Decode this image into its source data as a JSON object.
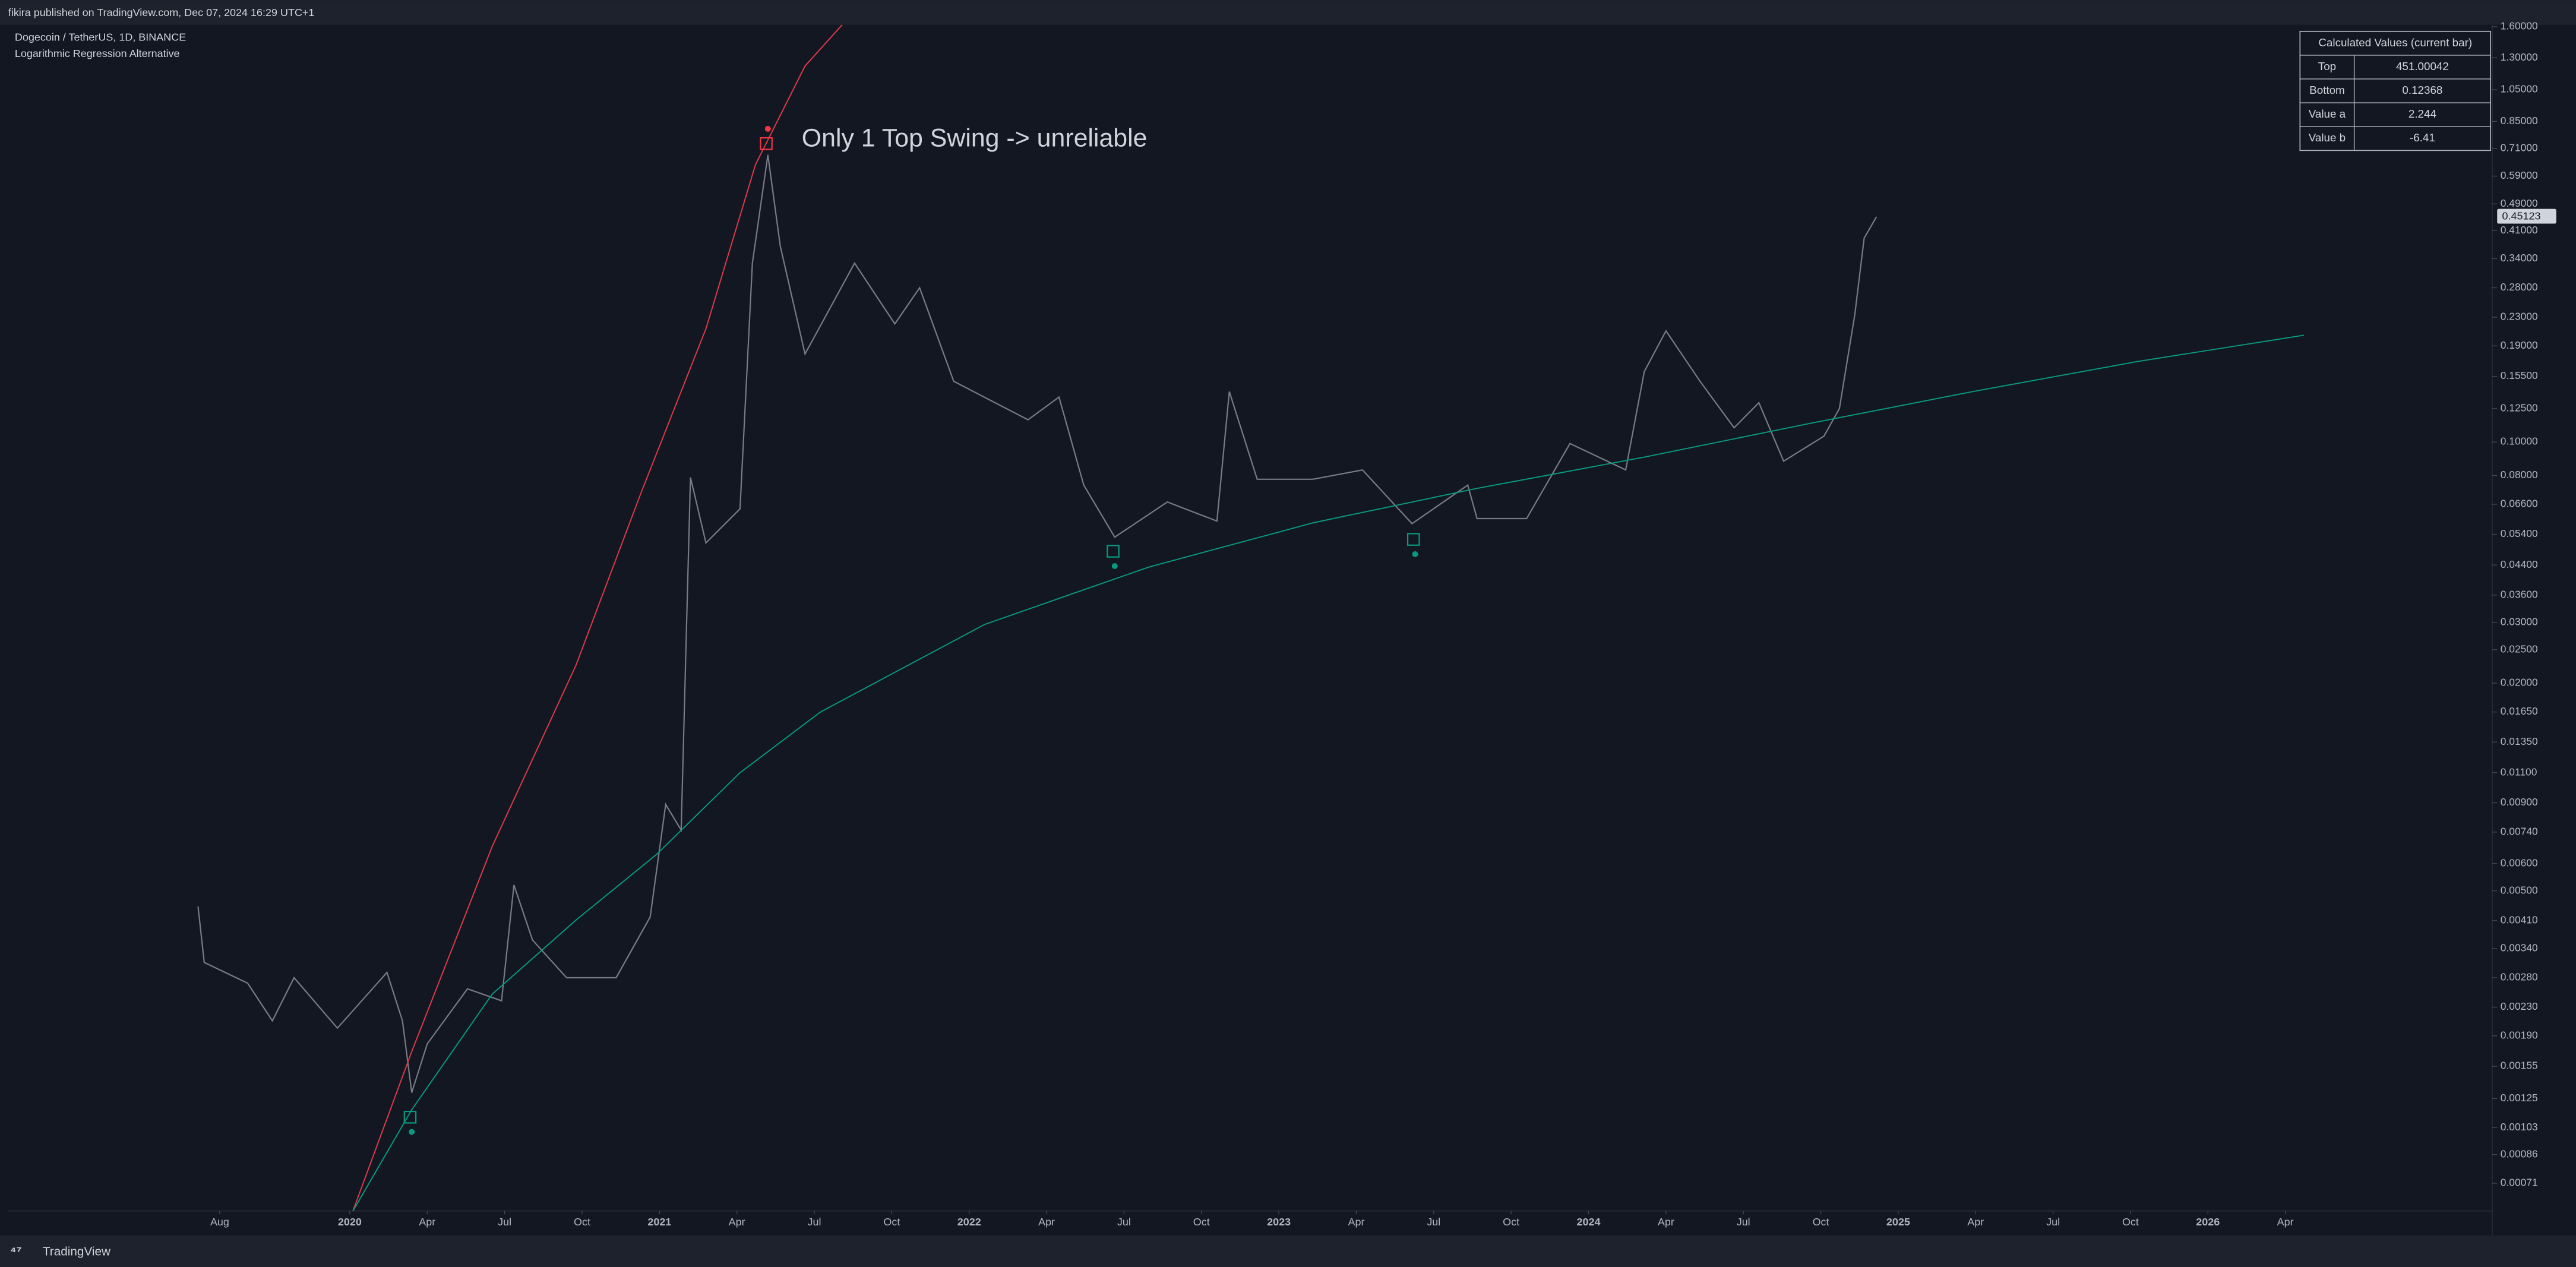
{
  "header": {
    "publisher": "fikira published on TradingView.com, Dec 07, 2024 16:29 UTC+1",
    "symbol": "Dogecoin / TetherUS, 1D, BINANCE",
    "indicator": "Logarithmic Regression Alternative"
  },
  "chart_data": {
    "type": "line",
    "log_scale": true,
    "annotation": "Only 1 Top Swing -> unreliable",
    "xlim": [
      2018.897,
      2026.918
    ],
    "ylim": [
      0.00059,
      1.62
    ],
    "xticks": [
      {
        "value": 2019.58,
        "label": "Aug"
      },
      2020,
      {
        "value": 2020.25,
        "label": "Apr"
      },
      {
        "value": 2020.5,
        "label": "Jul"
      },
      {
        "value": 2020.75,
        "label": "Oct"
      },
      2021,
      {
        "value": 2021.25,
        "label": "Apr"
      },
      {
        "value": 2021.5,
        "label": "Jul"
      },
      {
        "value": 2021.75,
        "label": "Oct"
      },
      2022,
      {
        "value": 2022.25,
        "label": "Apr"
      },
      {
        "value": 2022.5,
        "label": "Jul"
      },
      {
        "value": 2022.75,
        "label": "Oct"
      },
      2023,
      {
        "value": 2023.25,
        "label": "Apr"
      },
      {
        "value": 2023.5,
        "label": "Jul"
      },
      {
        "value": 2023.75,
        "label": "Oct"
      },
      2024,
      {
        "value": 2024.25,
        "label": "Apr"
      },
      {
        "value": 2024.5,
        "label": "Jul"
      },
      {
        "value": 2024.75,
        "label": "Oct"
      },
      2025,
      {
        "value": 2025.25,
        "label": "Apr"
      },
      {
        "value": 2025.5,
        "label": "Jul"
      },
      {
        "value": 2025.75,
        "label": "Oct"
      },
      2026,
      {
        "value": 2026.25,
        "label": "Apr"
      }
    ],
    "yticks": [
      {
        "value": 1.6,
        "label": "1.60000"
      },
      {
        "value": 1.3,
        "label": "1.30000"
      },
      {
        "value": 1.05,
        "label": "1.05000"
      },
      {
        "value": 0.85,
        "label": "0.85000"
      },
      {
        "value": 0.71,
        "label": "0.71000"
      },
      {
        "value": 0.59,
        "label": "0.59000"
      },
      {
        "value": 0.49,
        "label": "0.49000"
      },
      {
        "value": 0.41,
        "label": "0.41000"
      },
      {
        "value": 0.34,
        "label": "0.34000"
      },
      {
        "value": 0.28,
        "label": "0.28000"
      },
      {
        "value": 0.23,
        "label": "0.23000"
      },
      {
        "value": 0.19,
        "label": "0.19000"
      },
      {
        "value": 0.155,
        "label": "0.15500"
      },
      {
        "value": 0.125,
        "label": "0.12500"
      },
      {
        "value": 0.1,
        "label": "0.10000"
      },
      {
        "value": 0.08,
        "label": "0.08000"
      },
      {
        "value": 0.066,
        "label": "0.06600"
      },
      {
        "value": 0.054,
        "label": "0.05400"
      },
      {
        "value": 0.044,
        "label": "0.04400"
      },
      {
        "value": 0.036,
        "label": "0.03600"
      },
      {
        "value": 0.03,
        "label": "0.03000"
      },
      {
        "value": 0.025,
        "label": "0.02500"
      },
      {
        "value": 0.02,
        "label": "0.02000"
      },
      {
        "value": 0.0165,
        "label": "0.01650"
      },
      {
        "value": 0.0135,
        "label": "0.01350"
      },
      {
        "value": 0.011,
        "label": "0.01100"
      },
      {
        "value": 0.009,
        "label": "0.00900"
      },
      {
        "value": 0.0074,
        "label": "0.00740"
      },
      {
        "value": 0.006,
        "label": "0.00600"
      },
      {
        "value": 0.005,
        "label": "0.00500"
      },
      {
        "value": 0.0041,
        "label": "0.00410"
      },
      {
        "value": 0.0034,
        "label": "0.00340"
      },
      {
        "value": 0.0028,
        "label": "0.00280"
      },
      {
        "value": 0.0023,
        "label": "0.00230"
      },
      {
        "value": 0.0019,
        "label": "0.00190"
      },
      {
        "value": 0.00155,
        "label": "0.00155"
      },
      {
        "value": 0.00125,
        "label": "0.00125"
      },
      {
        "value": 0.00103,
        "label": "0.00103"
      },
      {
        "value": 0.00086,
        "label": "0.00086"
      },
      {
        "value": 0.00071,
        "label": "0.00071"
      }
    ],
    "last_price": 0.45123,
    "series": [
      {
        "color": "#787b86",
        "x": [
          2019.51,
          2019.53,
          2019.67,
          2019.75,
          2019.82,
          2019.96,
          2020.12,
          2020.17,
          2020.2,
          2020.25,
          2020.38,
          2020.49,
          2020.53,
          2020.59,
          2020.7,
          2020.86,
          2020.97,
          2021.02,
          2021.07,
          2021.1,
          2021.15,
          2021.26,
          2021.3,
          2021.35,
          2021.39,
          2021.47,
          2021.63,
          2021.76,
          2021.84,
          2021.95,
          2022.19,
          2022.29,
          2022.37,
          2022.47,
          2022.64,
          2022.8,
          2022.84,
          2022.93,
          2023.11,
          2023.27,
          2023.43,
          2023.61,
          2023.64,
          2023.8,
          2023.94,
          2024.12,
          2024.18,
          2024.25,
          2024.36,
          2024.47,
          2024.55,
          2024.63,
          2024.76,
          2024.81,
          2024.86,
          2024.89,
          2024.93
        ],
        "values": [
          0.0045,
          0.0031,
          0.0027,
          0.0021,
          0.0028,
          0.002,
          0.0029,
          0.0021,
          0.0013,
          0.0018,
          0.0026,
          0.0024,
          0.0052,
          0.0036,
          0.0028,
          0.0028,
          0.0042,
          0.0089,
          0.0075,
          0.079,
          0.051,
          0.064,
          0.33,
          0.68,
          0.37,
          0.18,
          0.33,
          0.22,
          0.28,
          0.15,
          0.116,
          0.135,
          0.075,
          0.053,
          0.067,
          0.059,
          0.14,
          0.078,
          0.078,
          0.083,
          0.058,
          0.075,
          0.06,
          0.06,
          0.099,
          0.083,
          0.16,
          0.21,
          0.15,
          0.11,
          0.13,
          0.088,
          0.104,
          0.125,
          0.235,
          0.39,
          0.45
        ]
      },
      {
        "color": "#e03a4a",
        "x": [
          2020.01,
          2020.2,
          2020.46,
          2020.73,
          2020.94,
          2021.15,
          2021.31,
          2021.47,
          2021.59
        ],
        "values": [
          0.00059,
          0.00171,
          0.00673,
          0.0225,
          0.0711,
          0.213,
          0.637,
          1.23,
          1.62
        ]
      },
      {
        "color": "#089981",
        "x": [
          2020.01,
          2020.2,
          2020.46,
          2020.73,
          2020.99,
          2021.26,
          2021.52,
          2022.05,
          2022.58,
          2023.11,
          2023.64,
          2024.18,
          2024.71,
          2025.24,
          2025.77,
          2026.31
        ],
        "values": [
          0.00059,
          0.00116,
          0.00251,
          0.00411,
          0.00637,
          0.011,
          0.0165,
          0.0296,
          0.0434,
          0.0583,
          0.0734,
          0.0904,
          0.113,
          0.14,
          0.171,
          0.204
        ]
      }
    ],
    "swings": [
      {
        "color": "#f23645",
        "x": [
          2021.35
        ],
        "values": [
          0.809
        ]
      },
      {
        "color": "#089981",
        "x": [
          2020.2,
          2022.47,
          2023.44
        ],
        "values": [
          0.001,
          0.0437,
          0.0473
        ]
      }
    ]
  },
  "table": {
    "title": "Calculated Values (current bar)",
    "rows": [
      [
        "Top",
        "451.00042"
      ],
      [
        "Bottom",
        "0.12368"
      ],
      [
        "Value a",
        "2.244"
      ],
      [
        "Value b",
        "-6.41"
      ]
    ]
  },
  "footer": "TradingView"
}
